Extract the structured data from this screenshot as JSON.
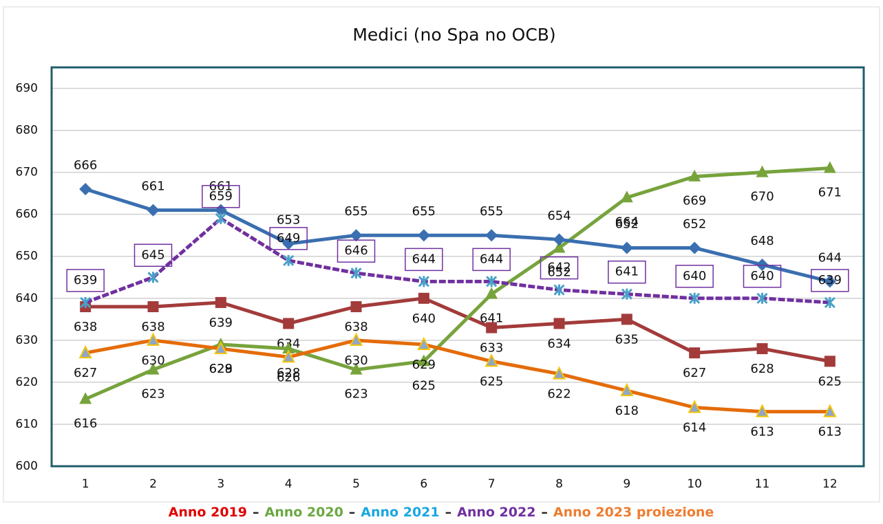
{
  "chart_data": {
    "type": "line",
    "title": "Medici (no Spa no OCB)",
    "categories": [
      "1",
      "2",
      "3",
      "4",
      "5",
      "6",
      "7",
      "8",
      "9",
      "10",
      "11",
      "12"
    ],
    "ylim": [
      600,
      695
    ],
    "yticks": [
      600,
      610,
      620,
      630,
      640,
      650,
      660,
      670,
      680,
      690
    ],
    "grid": true,
    "legend_separator": "–",
    "series": [
      {
        "name": "Anno 2019",
        "color": "#a33b3b",
        "legend_color": "#e00000",
        "marker": "square",
        "values": [
          638,
          638,
          639,
          634,
          638,
          640,
          633,
          634,
          635,
          627,
          628,
          625
        ]
      },
      {
        "name": "Anno 2020",
        "color": "#77a33c",
        "legend_color": "#6aa842",
        "marker": "triangle",
        "values": [
          616,
          623,
          629,
          628,
          623,
          625,
          641,
          652,
          664,
          669,
          670,
          671
        ]
      },
      {
        "name": "Anno 2021",
        "color": "#3a6fb0",
        "legend_color": "#1aa7e0",
        "marker": "diamond",
        "values": [
          666,
          661,
          661,
          653,
          655,
          655,
          655,
          654,
          652,
          652,
          648,
          644
        ]
      },
      {
        "name": "Anno 2022",
        "color": "#7030a0",
        "legend_color": "#7030a0",
        "marker": "cross",
        "values": [
          639,
          645,
          659,
          649,
          646,
          644,
          644,
          642,
          641,
          640,
          640,
          639
        ]
      },
      {
        "name": "Anno 2023 proiezione",
        "color": "#e46c0a",
        "legend_color": "#ed7d31",
        "marker": "triangle2",
        "values": [
          627,
          630,
          628,
          626,
          630,
          629,
          625,
          622,
          618,
          614,
          613,
          613
        ]
      }
    ]
  }
}
